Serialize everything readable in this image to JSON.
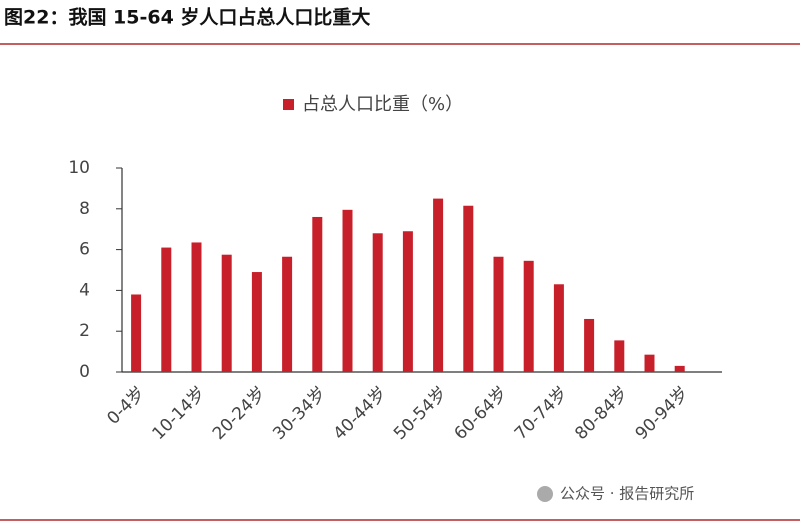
{
  "chart_data": {
    "type": "bar",
    "title": "图22：我国 15-64 岁人口占总人口比重大",
    "legend": "占总人口比重（%）",
    "categories": [
      "0-4岁",
      null,
      "10-14岁",
      null,
      "20-24岁",
      null,
      "30-34岁",
      null,
      "40-44岁",
      null,
      "50-54岁",
      null,
      "60-64岁",
      null,
      "70-74岁",
      null,
      "80-84岁",
      null,
      "90-94岁"
    ],
    "values": [
      3.8,
      6.1,
      6.35,
      5.75,
      4.9,
      5.65,
      7.6,
      7.95,
      6.8,
      6.9,
      8.5,
      8.15,
      5.65,
      5.45,
      4.3,
      2.6,
      1.55,
      0.85,
      0.3
    ],
    "color": "#c8202b",
    "ylim": [
      0,
      10
    ],
    "yticks": [
      0,
      2,
      4,
      6,
      8,
      10
    ],
    "grid": false
  },
  "watermark": "公众号 · 报告研究所"
}
